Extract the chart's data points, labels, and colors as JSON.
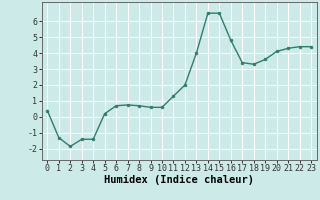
{
  "x": [
    0,
    1,
    2,
    3,
    4,
    5,
    6,
    7,
    8,
    9,
    10,
    11,
    12,
    13,
    14,
    15,
    16,
    17,
    18,
    19,
    20,
    21,
    22,
    23
  ],
  "y": [
    0.4,
    -1.3,
    -1.85,
    -1.4,
    -1.4,
    0.2,
    0.7,
    0.75,
    0.7,
    0.6,
    0.6,
    1.3,
    2.0,
    4.0,
    6.5,
    6.5,
    4.8,
    3.4,
    3.3,
    3.6,
    4.1,
    4.3,
    4.4,
    4.4
  ],
  "xlabel": "Humidex (Indice chaleur)",
  "xlim": [
    -0.5,
    23.5
  ],
  "ylim": [
    -2.7,
    7.2
  ],
  "yticks": [
    -2,
    -1,
    0,
    1,
    2,
    3,
    4,
    5,
    6
  ],
  "xticks": [
    0,
    1,
    2,
    3,
    4,
    5,
    6,
    7,
    8,
    9,
    10,
    11,
    12,
    13,
    14,
    15,
    16,
    17,
    18,
    19,
    20,
    21,
    22,
    23
  ],
  "line_color": "#2e7d6e",
  "marker_size": 2.0,
  "line_width": 1.0,
  "bg_color": "#cceae8",
  "grid_color": "#ffffff",
  "xlabel_fontsize": 7.5,
  "tick_fontsize": 6.0
}
